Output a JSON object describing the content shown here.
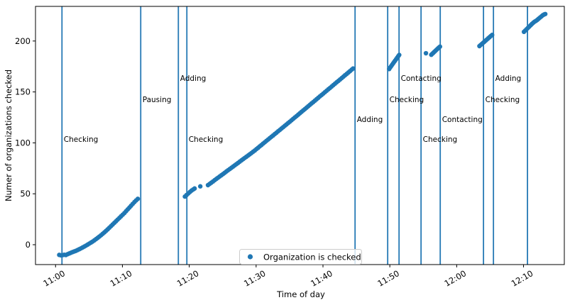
{
  "chart_data": {
    "type": "scatter",
    "title": "",
    "xlabel": "Time of day",
    "ylabel": "Numer of organizations checked",
    "x_unit": "minutes_after_11:00",
    "xlim_minutes": [
      -3.0,
      76.1
    ],
    "ylim": [
      -19.5,
      234
    ],
    "grid": false,
    "marker_color": "#1f77b4",
    "event_line_color": "#2579b5",
    "legend": {
      "label": "Organization is checked",
      "marker_color": "#1f77b4",
      "loc": "lower center"
    },
    "x_ticks": [
      {
        "t": 0,
        "label": "11:00"
      },
      {
        "t": 10,
        "label": "11:10"
      },
      {
        "t": 20,
        "label": "11:20"
      },
      {
        "t": 30,
        "label": "11:30"
      },
      {
        "t": 40,
        "label": "11:40"
      },
      {
        "t": 50,
        "label": "11:50"
      },
      {
        "t": 60,
        "label": "12:00"
      },
      {
        "t": 70,
        "label": "12:10"
      }
    ],
    "y_ticks": [
      {
        "v": 0,
        "label": "0"
      },
      {
        "v": 50,
        "label": "50"
      },
      {
        "v": 100,
        "label": "100"
      },
      {
        "v": 150,
        "label": "150"
      },
      {
        "v": 200,
        "label": "200"
      }
    ],
    "events": [
      {
        "t": 0.96,
        "label": "Checking",
        "label_v": 101
      },
      {
        "t": 12.74,
        "label": "Pausing",
        "label_v": 140
      },
      {
        "t": 18.37,
        "label": "Adding",
        "label_v": 161
      },
      {
        "t": 19.64,
        "label": "Checking",
        "label_v": 101
      },
      {
        "t": 44.8,
        "label": "Adding",
        "label_v": 120.5
      },
      {
        "t": 49.68,
        "label": "Checking",
        "label_v": 140
      },
      {
        "t": 51.38,
        "label": "Contacting",
        "label_v": 161
      },
      {
        "t": 54.67,
        "label": "Checking",
        "label_v": 101
      },
      {
        "t": 57.54,
        "label": "Contacting",
        "label_v": 120.5
      },
      {
        "t": 64.01,
        "label": "Checking",
        "label_v": 140
      },
      {
        "t": 65.5,
        "label": "Adding",
        "label_v": 161
      },
      {
        "t": 70.59,
        "label": "",
        "label_v": null
      }
    ],
    "series": [
      {
        "name": "Organization is checked",
        "points": [
          [
            0.55,
            -10
          ],
          [
            0.8,
            -10.4
          ],
          [
            1.05,
            -10.2
          ],
          [
            1.3,
            -9.9
          ],
          [
            1.55,
            -10.1
          ],
          [
            1.8,
            -9.3
          ],
          [
            2.05,
            -8.6
          ],
          [
            2.3,
            -7.9
          ],
          [
            2.55,
            -7.2
          ],
          [
            2.8,
            -6.6
          ],
          [
            3.05,
            -6
          ],
          [
            3.3,
            -5.2
          ],
          [
            3.55,
            -4.4
          ],
          [
            3.8,
            -3.6
          ],
          [
            4.05,
            -2.7
          ],
          [
            4.3,
            -1.8
          ],
          [
            4.55,
            -0.9
          ],
          [
            4.8,
            0.1
          ],
          [
            5.05,
            1.1
          ],
          [
            5.3,
            2.1
          ],
          [
            5.55,
            3.1
          ],
          [
            5.8,
            4.3
          ],
          [
            6.05,
            5.5
          ],
          [
            6.3,
            6.7
          ],
          [
            6.55,
            8
          ],
          [
            6.8,
            9.3
          ],
          [
            7.05,
            10.7
          ],
          [
            7.3,
            12.1
          ],
          [
            7.55,
            13.6
          ],
          [
            7.8,
            15.1
          ],
          [
            8.05,
            16.7
          ],
          [
            8.3,
            18.3
          ],
          [
            8.55,
            19.9
          ],
          [
            8.8,
            21.5
          ],
          [
            9.05,
            23.1
          ],
          [
            9.3,
            24.7
          ],
          [
            9.55,
            26.3
          ],
          [
            9.8,
            27.9
          ],
          [
            10.05,
            29.5
          ],
          [
            10.3,
            31.1
          ],
          [
            10.55,
            32.9
          ],
          [
            10.8,
            34.7
          ],
          [
            11.05,
            36.5
          ],
          [
            11.3,
            38.3
          ],
          [
            11.55,
            40.1
          ],
          [
            11.8,
            41.9
          ],
          [
            12.05,
            43.5
          ],
          [
            12.3,
            45
          ],
          [
            19.35,
            47.3
          ],
          [
            19.6,
            48.8
          ],
          [
            19.85,
            50.3
          ],
          [
            20.1,
            51.8
          ],
          [
            20.35,
            53.2
          ],
          [
            20.6,
            54.3
          ],
          [
            20.8,
            55.2
          ],
          [
            21.65,
            57.3
          ],
          [
            22.8,
            58.5
          ],
          [
            23.05,
            59.7
          ],
          [
            23.3,
            60.9
          ],
          [
            23.55,
            62.1
          ],
          [
            23.8,
            63.4
          ],
          [
            24.05,
            64.6
          ],
          [
            24.3,
            65.8
          ],
          [
            24.55,
            67
          ],
          [
            24.8,
            68.2
          ],
          [
            25.05,
            69.4
          ],
          [
            25.3,
            70.6
          ],
          [
            25.55,
            71.9
          ],
          [
            25.8,
            73.1
          ],
          [
            26.05,
            74.3
          ],
          [
            26.3,
            75.5
          ],
          [
            26.55,
            76.7
          ],
          [
            26.8,
            77.9
          ],
          [
            27.05,
            79.1
          ],
          [
            27.3,
            80.3
          ],
          [
            27.55,
            81.6
          ],
          [
            27.8,
            82.8
          ],
          [
            28.05,
            84
          ],
          [
            28.3,
            85.2
          ],
          [
            28.55,
            86.4
          ],
          [
            28.8,
            87.6
          ],
          [
            29.05,
            88.8
          ],
          [
            29.3,
            90
          ],
          [
            29.55,
            91.3
          ],
          [
            29.8,
            92.5
          ],
          [
            30.05,
            93.9
          ],
          [
            30.3,
            95.2
          ],
          [
            30.55,
            96.6
          ],
          [
            30.8,
            97.9
          ],
          [
            31.05,
            99.3
          ],
          [
            31.3,
            100.6
          ],
          [
            31.55,
            102
          ],
          [
            31.8,
            103.3
          ],
          [
            32.05,
            104.7
          ],
          [
            32.3,
            106
          ],
          [
            32.55,
            107.3
          ],
          [
            32.8,
            108.7
          ],
          [
            33.05,
            110
          ],
          [
            33.3,
            111.4
          ],
          [
            33.55,
            112.7
          ],
          [
            33.8,
            114.1
          ],
          [
            34.05,
            115.4
          ],
          [
            34.3,
            116.8
          ],
          [
            34.55,
            118.1
          ],
          [
            34.8,
            119.5
          ],
          [
            35.05,
            120.8
          ],
          [
            35.3,
            122.2
          ],
          [
            35.55,
            123.6
          ],
          [
            35.8,
            125
          ],
          [
            36.05,
            126.3
          ],
          [
            36.3,
            127.7
          ],
          [
            36.55,
            129.1
          ],
          [
            36.8,
            130.5
          ],
          [
            37.05,
            131.9
          ],
          [
            37.3,
            133.2
          ],
          [
            37.55,
            134.6
          ],
          [
            37.8,
            136
          ],
          [
            38.05,
            137.4
          ],
          [
            38.3,
            138.8
          ],
          [
            38.55,
            140.1
          ],
          [
            38.8,
            141.5
          ],
          [
            39.05,
            142.9
          ],
          [
            39.3,
            144.3
          ],
          [
            39.55,
            145.7
          ],
          [
            39.8,
            147
          ],
          [
            40.05,
            148.4
          ],
          [
            40.3,
            149.8
          ],
          [
            40.55,
            151.2
          ],
          [
            40.8,
            152.6
          ],
          [
            41.05,
            153.9
          ],
          [
            41.3,
            155.3
          ],
          [
            41.55,
            156.7
          ],
          [
            41.8,
            158.1
          ],
          [
            42.05,
            159.5
          ],
          [
            42.3,
            160.8
          ],
          [
            42.55,
            162.2
          ],
          [
            42.8,
            163.6
          ],
          [
            43.05,
            165
          ],
          [
            43.3,
            166.4
          ],
          [
            43.55,
            167.7
          ],
          [
            43.8,
            169.1
          ],
          [
            44.05,
            170.5
          ],
          [
            44.3,
            171.9
          ],
          [
            44.5,
            173
          ],
          [
            49.9,
            172.5
          ],
          [
            50.05,
            173.9
          ],
          [
            50.2,
            175.3
          ],
          [
            50.35,
            176.7
          ],
          [
            50.5,
            178.1
          ],
          [
            50.65,
            179.5
          ],
          [
            50.8,
            180.8
          ],
          [
            50.95,
            182.2
          ],
          [
            51.1,
            183.6
          ],
          [
            51.25,
            185
          ],
          [
            51.4,
            186.3
          ],
          [
            55.4,
            188
          ],
          [
            56.2,
            186.5
          ],
          [
            56.36,
            187.5
          ],
          [
            56.52,
            188.5
          ],
          [
            56.68,
            189.5
          ],
          [
            56.84,
            190.5
          ],
          [
            57,
            191.5
          ],
          [
            57.16,
            192.5
          ],
          [
            57.32,
            193.5
          ],
          [
            57.5,
            194.5
          ],
          [
            63.4,
            195
          ],
          [
            63.59,
            196.1
          ],
          [
            63.78,
            197.2
          ],
          [
            63.97,
            198.3
          ],
          [
            64.16,
            199.4
          ],
          [
            64.35,
            200.5
          ],
          [
            64.54,
            201.6
          ],
          [
            64.73,
            202.7
          ],
          [
            64.92,
            203.8
          ],
          [
            65.11,
            204.9
          ],
          [
            65.3,
            206
          ],
          [
            70.06,
            209
          ],
          [
            70.26,
            210.3
          ],
          [
            70.46,
            211.6
          ],
          [
            70.66,
            212.9
          ],
          [
            70.86,
            214.2
          ],
          [
            71.06,
            215.5
          ],
          [
            71.26,
            216.8
          ],
          [
            71.46,
            218
          ],
          [
            71.66,
            219
          ],
          [
            71.86,
            219.8
          ],
          [
            72.06,
            220.8
          ],
          [
            72.26,
            221.9
          ],
          [
            72.46,
            223
          ],
          [
            72.66,
            224.1
          ],
          [
            72.86,
            225.2
          ],
          [
            73.06,
            226
          ],
          [
            73.25,
            226.5
          ]
        ]
      }
    ]
  }
}
